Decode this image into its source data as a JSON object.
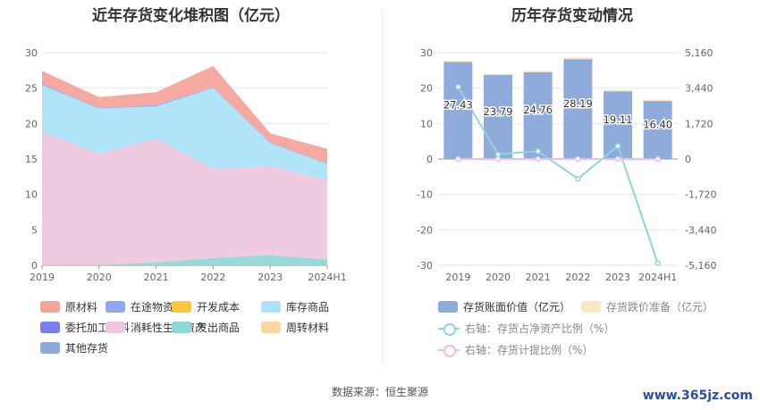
{
  "source_text": "数据来源：恒生聚源",
  "watermark_text": "www.365jz.com",
  "chart_data": [
    {
      "type": "area",
      "title": "近年存货变化堆积图（亿元）",
      "x": [
        "2019",
        "2020",
        "2021",
        "2022",
        "2023",
        "2024H1"
      ],
      "ylim": [
        0,
        30
      ],
      "yticks": [
        "0",
        "5",
        "10",
        "15",
        "20",
        "25",
        "30"
      ],
      "stacked": true,
      "legend_position": "bottom",
      "series": [
        {
          "name": "原材料",
          "color": "#f4a49b",
          "values": [
            1.8,
            1.5,
            1.8,
            3.0,
            1.3,
            2.0
          ]
        },
        {
          "name": "在途物资",
          "color": "#8fa8f0",
          "values": [
            0.2,
            0.1,
            0.2,
            0.1,
            0.1,
            0.1
          ]
        },
        {
          "name": "开发成本",
          "color": "#fbc73e",
          "values": [
            0,
            0,
            0,
            0,
            0,
            0
          ]
        },
        {
          "name": "库存商品",
          "color": "#ace3f9",
          "values": [
            6.5,
            6.4,
            4.5,
            11.4,
            3.2,
            2.3
          ]
        },
        {
          "name": "委托加工材料",
          "color": "#7a7ff0",
          "values": [
            0,
            0,
            0,
            0,
            0,
            0
          ]
        },
        {
          "name": "消耗性生物资产",
          "color": "#eec8e0",
          "values": [
            18.9,
            15.7,
            17.5,
            12.6,
            12.6,
            11.2
          ]
        },
        {
          "name": "发出商品",
          "color": "#8ed9d8",
          "values": [
            0,
            0,
            0.4,
            1.0,
            1.4,
            0.8
          ]
        },
        {
          "name": "周转材料",
          "color": "#fcd6a3",
          "values": [
            0.03,
            0.03,
            0.03,
            0.03,
            0.03,
            0.03
          ]
        },
        {
          "name": "其他存货",
          "color": "#8baadd",
          "values": [
            0,
            0,
            0,
            0,
            0,
            0
          ]
        }
      ]
    },
    {
      "type": "bar",
      "title": "历年存货变动情况",
      "categories": [
        "2019",
        "2020",
        "2021",
        "2022",
        "2023",
        "2024H1"
      ],
      "ylim": [
        -30,
        30
      ],
      "yticks": [
        "-30",
        "-20",
        "-10",
        "0",
        "10",
        "20",
        "30"
      ],
      "y2lim": [
        -5160,
        5160
      ],
      "y2ticks": [
        "-5,160",
        "-3,440",
        "-1,720",
        "0",
        "1,720",
        "3,440",
        "5,160"
      ],
      "legend_position": "bottom",
      "series": [
        {
          "name": "存货账面价值（亿元）",
          "kind": "bar",
          "color": "#8fabdc",
          "values": [
            27.43,
            23.79,
            24.76,
            28.19,
            19.11,
            16.4
          ],
          "labels": [
            "27.43",
            "23.79",
            "24.76",
            "28.19",
            "19.11",
            "16.40"
          ]
        },
        {
          "name": "存货跌价准备（亿元）",
          "kind": "bar",
          "color": "#fde7c2",
          "values": [
            0.3,
            0.3,
            0.1,
            0.5,
            0.4,
            0.3
          ]
        },
        {
          "name": "右轴：存货占净资产比例（%）",
          "kind": "line",
          "axis": "right",
          "color": "#8ed6dc",
          "values": [
            3500,
            230,
            380,
            -960,
            630,
            -5050
          ]
        },
        {
          "name": "右轴：存货计提比例（%）",
          "kind": "line",
          "axis": "right",
          "color": "#eebfd8",
          "values": [
            1.1,
            1.3,
            0.4,
            1.8,
            2.1,
            1.8
          ]
        }
      ]
    }
  ]
}
